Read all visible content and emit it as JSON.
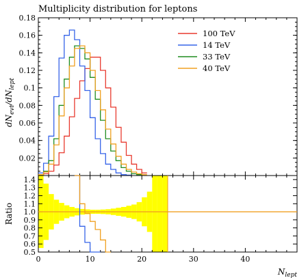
{
  "chart_data": [
    {
      "type": "line",
      "title": "Multiplicity distribution for leptons",
      "ylabel": "dN_evt/dN_lept",
      "xlim": [
        0,
        50
      ],
      "ylim": [
        0,
        0.18
      ],
      "yticks": [
        0.02,
        0.04,
        0.06,
        0.08,
        0.1,
        0.12,
        0.14,
        0.16,
        0.18
      ],
      "ytick_labels": [
        "0.02",
        "0.04",
        "0.06",
        "0.08",
        "0.1",
        "0.12",
        "0.14",
        "0.16",
        "0.18"
      ],
      "legend": "top-right",
      "bin_width": 1,
      "series": [
        {
          "name": "100 TeV",
          "color": "#e8392e",
          "x": [
            0,
            1,
            2,
            3,
            4,
            5,
            6,
            7,
            8,
            9,
            10,
            11,
            12,
            13,
            14,
            15,
            16,
            17,
            18,
            19,
            20
          ],
          "values": [
            0.001,
            0.002,
            0.005,
            0.012,
            0.026,
            0.045,
            0.067,
            0.088,
            0.108,
            0.122,
            0.135,
            0.135,
            0.12,
            0.1,
            0.078,
            0.055,
            0.038,
            0.023,
            0.013,
            0.007,
            0.003
          ]
        },
        {
          "name": "14 TeV",
          "color": "#3563e8",
          "x": [
            0,
            1,
            2,
            3,
            4,
            5,
            6,
            7,
            8,
            9,
            10,
            11,
            12,
            13,
            14,
            15,
            16,
            17
          ],
          "values": [
            0.003,
            0.014,
            0.045,
            0.09,
            0.134,
            0.16,
            0.166,
            0.155,
            0.125,
            0.097,
            0.066,
            0.042,
            0.025,
            0.013,
            0.007,
            0.003,
            0.001,
            0.0005
          ]
        },
        {
          "name": "33 TeV",
          "color": "#1e8c1e",
          "x": [
            0,
            1,
            2,
            3,
            4,
            5,
            6,
            7,
            8,
            9,
            10,
            11,
            12,
            13,
            14,
            15,
            16,
            17,
            18,
            19
          ],
          "values": [
            0.001,
            0.005,
            0.017,
            0.042,
            0.08,
            0.11,
            0.135,
            0.148,
            0.145,
            0.133,
            0.112,
            0.087,
            0.063,
            0.042,
            0.028,
            0.017,
            0.009,
            0.005,
            0.002,
            0.001
          ]
        },
        {
          "name": "40 TeV",
          "color": "#f0a020",
          "x": [
            0,
            1,
            2,
            3,
            4,
            5,
            6,
            7,
            8,
            9,
            10,
            11,
            12,
            13,
            14,
            15,
            16,
            17,
            18,
            19,
            20
          ],
          "values": [
            0.001,
            0.004,
            0.013,
            0.035,
            0.068,
            0.1,
            0.125,
            0.145,
            0.148,
            0.14,
            0.12,
            0.097,
            0.075,
            0.053,
            0.036,
            0.022,
            0.013,
            0.007,
            0.004,
            0.002,
            0.001
          ]
        }
      ]
    },
    {
      "type": "line",
      "ylabel": "Ratio",
      "xlabel": "N_lept",
      "xlim": [
        0,
        50
      ],
      "ylim": [
        0.5,
        1.45
      ],
      "xticks": [
        0,
        10,
        20,
        30,
        40
      ],
      "xtick_labels": [
        "0",
        "10",
        "20",
        "30",
        "40"
      ],
      "yticks": [
        0.5,
        0.6,
        0.7,
        0.8,
        0.9,
        1.0,
        1.1,
        1.2,
        1.3,
        1.4
      ],
      "ytick_labels": [
        "0.5",
        "0.6",
        "0.7",
        "0.8",
        "0.9",
        "1.0",
        "1.1",
        "1.2",
        "1.3",
        "1.4"
      ],
      "reference_line": 1.0,
      "band_color": "#ffff00",
      "band": {
        "x": [
          0,
          1,
          2,
          3,
          4,
          5,
          6,
          7,
          8,
          9,
          10,
          11,
          12,
          13,
          14,
          15,
          16,
          17,
          18,
          19,
          20,
          21,
          22,
          23,
          24
        ],
        "half_width": [
          0.45,
          0.35,
          0.22,
          0.15,
          0.11,
          0.08,
          0.06,
          0.045,
          0.035,
          0.03,
          0.025,
          0.025,
          0.028,
          0.032,
          0.04,
          0.05,
          0.06,
          0.075,
          0.09,
          0.12,
          0.18,
          0.25,
          0.5,
          0.5,
          0.5
        ]
      },
      "series": [
        {
          "name": "14 TeV",
          "color": "#3563e8",
          "x": [
            7,
            8,
            9,
            10,
            11
          ],
          "values": [
            1.45,
            0.82,
            0.62,
            0.5,
            0.5
          ]
        },
        {
          "name": "40 TeV",
          "color": "#f0a020",
          "x": [
            7,
            8,
            9,
            10,
            11,
            12,
            13
          ],
          "values": [
            1.45,
            1.1,
            0.98,
            0.88,
            0.78,
            0.65,
            0.5
          ]
        }
      ]
    }
  ],
  "axis_labels": {
    "top_y": {
      "base": "dN",
      "sub1": "evt",
      "mid": "/dN",
      "sub2": "lept"
    },
    "bottom_x": {
      "base": "N",
      "sub": "lept"
    },
    "bottom_y": "Ratio"
  }
}
